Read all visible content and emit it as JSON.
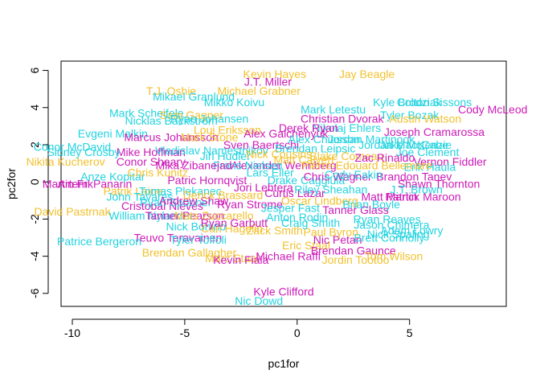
{
  "chart_data": {
    "type": "scatter",
    "title": "",
    "xlabel": "pc1for",
    "ylabel": "pc2for",
    "xlim": [
      -10.5,
      9.3
    ],
    "ylim": [
      -6.7,
      6.5
    ],
    "x_ticks": [
      -10,
      -5,
      0,
      5
    ],
    "x_tick_labels": [
      "-10",
      "-5",
      "0",
      "5"
    ],
    "y_ticks": [
      -6,
      -4,
      -2,
      0,
      2,
      4,
      6
    ],
    "y_tick_labels": [
      "-6",
      "-4",
      "-2",
      "0",
      "2",
      "4",
      "6"
    ],
    "grid": false,
    "legend": "none",
    "palette": {
      "cyan": "#22D3E0",
      "magenta": "#CD1BB8",
      "gold": "#F2C12E"
    },
    "points": [
      {
        "label": "Kevin Hayes",
        "x": -1.0,
        "y": 5.8,
        "color": "gold"
      },
      {
        "label": "Jay Beagle",
        "x": 3.1,
        "y": 5.8,
        "color": "gold"
      },
      {
        "label": "J.T. Miller",
        "x": -1.3,
        "y": 5.4,
        "color": "magenta"
      },
      {
        "label": "T.J. Oshie",
        "x": -5.6,
        "y": 4.9,
        "color": "gold"
      },
      {
        "label": "Michael Grabner",
        "x": -1.7,
        "y": 4.9,
        "color": "gold"
      },
      {
        "label": "Mikael Granlund",
        "x": -4.6,
        "y": 4.6,
        "color": "cyan"
      },
      {
        "label": "Mikko Koivu",
        "x": -2.8,
        "y": 4.3,
        "color": "cyan"
      },
      {
        "label": "Mark Letestu",
        "x": 1.6,
        "y": 3.9,
        "color": "cyan"
      },
      {
        "label": "Kyle Brodziak",
        "x": 4.9,
        "y": 4.3,
        "color": "cyan"
      },
      {
        "label": "Colton Sissons",
        "x": 6.1,
        "y": 4.3,
        "color": "cyan"
      },
      {
        "label": "Cody McLeod",
        "x": 8.7,
        "y": 3.9,
        "color": "magenta"
      },
      {
        "label": "Mark Scheifele",
        "x": -6.7,
        "y": 3.7,
        "color": "cyan"
      },
      {
        "label": "Sam Gagner",
        "x": -4.7,
        "y": 3.6,
        "color": "gold"
      },
      {
        "label": "Nicklas Backstrom",
        "x": -5.6,
        "y": 3.3,
        "color": "cyan"
      },
      {
        "label": "Ryan Johansen",
        "x": -3.9,
        "y": 3.4,
        "color": "cyan"
      },
      {
        "label": "Christian Dvorak",
        "x": 2.0,
        "y": 3.4,
        "color": "magenta"
      },
      {
        "label": "Tyler Bozak",
        "x": 5.0,
        "y": 3.6,
        "color": "cyan"
      },
      {
        "label": "Austin Watson",
        "x": 5.7,
        "y": 3.4,
        "color": "gold"
      },
      {
        "label": "Evgeni Malkin",
        "x": -8.2,
        "y": 2.6,
        "color": "cyan"
      },
      {
        "label": "Loui Eriksson",
        "x": -3.1,
        "y": 2.8,
        "color": "gold"
      },
      {
        "label": "Nikolaj Ehlers",
        "x": 2.2,
        "y": 2.9,
        "color": "cyan"
      },
      {
        "label": "Joseph Cramarossa",
        "x": 6.1,
        "y": 2.7,
        "color": "magenta"
      },
      {
        "label": "Marcus Johansson",
        "x": -5.6,
        "y": 2.4,
        "color": "magenta"
      },
      {
        "label": "Mike Hoffman",
        "x": -6.5,
        "y": 1.6,
        "color": "magenta"
      },
      {
        "label": "Conor McDavid",
        "x": -10.0,
        "y": 1.9,
        "color": "cyan"
      },
      {
        "label": "Sidney Crosby",
        "x": -9.5,
        "y": 1.6,
        "color": "cyan"
      },
      {
        "label": "Nikita Kucherov",
        "x": -10.3,
        "y": 1.1,
        "color": "gold"
      },
      {
        "label": "Conor Sheary",
        "x": -6.5,
        "y": 1.1,
        "color": "magenta"
      },
      {
        "label": "Mark Stone",
        "x": -3.9,
        "y": 2.4,
        "color": "gold"
      },
      {
        "label": "Alex Galchenyuk",
        "x": -0.5,
        "y": 2.6,
        "color": "magenta"
      },
      {
        "label": "Derek Ryan",
        "x": 0.5,
        "y": 2.9,
        "color": "magenta"
      },
      {
        "label": "Jordan Martinook",
        "x": 3.3,
        "y": 2.3,
        "color": "cyan"
      },
      {
        "label": "Jake McCabe",
        "x": 5.2,
        "y": 2.0,
        "color": "cyan"
      },
      {
        "label": "Joe Clement",
        "x": 5.8,
        "y": 1.6,
        "color": "cyan"
      },
      {
        "label": "Jordan MacKenzie",
        "x": 4.8,
        "y": 2.0,
        "color": "cyan"
      },
      {
        "label": "Vernon Fiddler",
        "x": 6.8,
        "y": 1.1,
        "color": "magenta"
      },
      {
        "label": "Erik Haula",
        "x": 5.9,
        "y": 0.8,
        "color": "cyan"
      },
      {
        "label": "Brandon Tanev",
        "x": 5.2,
        "y": 0.3,
        "color": "magenta"
      },
      {
        "label": "Shawn Thornton",
        "x": 6.3,
        "y": -0.1,
        "color": "magenta"
      },
      {
        "label": "Martin Frk",
        "x": -10.2,
        "y": -0.1,
        "color": "magenta"
      },
      {
        "label": "Artemi Panarin",
        "x": -9.0,
        "y": -0.1,
        "color": "magenta"
      },
      {
        "label": "Anze Kopitar",
        "x": -8.2,
        "y": 0.3,
        "color": "cyan"
      },
      {
        "label": "Patrik Laine",
        "x": -7.3,
        "y": -0.5,
        "color": "gold"
      },
      {
        "label": "John Tavares",
        "x": -7.0,
        "y": -0.8,
        "color": "cyan"
      },
      {
        "label": "Alexander Wennberg",
        "x": -0.6,
        "y": 0.9,
        "color": "magenta"
      },
      {
        "label": "Curtis Lazar",
        "x": -0.1,
        "y": -0.6,
        "color": "magenta"
      },
      {
        "label": "Drake Caggiula",
        "x": 0.4,
        "y": 0.1,
        "color": "cyan"
      },
      {
        "label": "Cristobal Nieves",
        "x": -6.0,
        "y": -1.3,
        "color": "magenta"
      },
      {
        "label": "Ryan Spooner",
        "x": -5.4,
        "y": -1.1,
        "color": "cyan"
      },
      {
        "label": "Andrew Shaw",
        "x": -4.6,
        "y": -1.0,
        "color": "magenta"
      },
      {
        "label": "David Pastrnak",
        "x": -10.0,
        "y": -1.6,
        "color": "gold"
      },
      {
        "label": "William Nylander",
        "x": -6.5,
        "y": -1.8,
        "color": "cyan"
      },
      {
        "label": "Tanner Pearson",
        "x": -5.0,
        "y": -1.8,
        "color": "magenta"
      },
      {
        "label": "Mats Zuccarello",
        "x": -3.7,
        "y": -1.8,
        "color": "gold"
      },
      {
        "label": "Anton Rodin",
        "x": 0.0,
        "y": -1.9,
        "color": "cyan"
      },
      {
        "label": "Matt Martin",
        "x": 4.1,
        "y": -0.8,
        "color": "magenta"
      },
      {
        "label": "Patrick Maroon",
        "x": 5.6,
        "y": -0.8,
        "color": "magenta"
      },
      {
        "label": "J.T. Brown",
        "x": 5.3,
        "y": -0.4,
        "color": "cyan"
      },
      {
        "label": "Ryan Reaves",
        "x": 4.0,
        "y": -2.0,
        "color": "cyan"
      },
      {
        "label": "Jason Chimera",
        "x": 4.2,
        "y": -2.3,
        "color": "cyan"
      },
      {
        "label": "Adam Lowry",
        "x": 5.1,
        "y": -2.6,
        "color": "cyan"
      },
      {
        "label": "Nick Bonino",
        "x": -4.5,
        "y": -2.4,
        "color": "cyan"
      },
      {
        "label": "Carl Hagelin",
        "x": -2.9,
        "y": -2.5,
        "color": "gold"
      },
      {
        "label": "Teuvo Teravainen",
        "x": -5.3,
        "y": -3.0,
        "color": "magenta"
      },
      {
        "label": "Tyler Toffoli",
        "x": -4.4,
        "y": -3.1,
        "color": "cyan"
      },
      {
        "label": "Patrice Bergeron",
        "x": -8.8,
        "y": -3.2,
        "color": "cyan"
      },
      {
        "label": "Brendan Gallagher",
        "x": -4.8,
        "y": -3.8,
        "color": "gold"
      },
      {
        "label": "Marc Staal",
        "x": -2.9,
        "y": -4.1,
        "color": "gold"
      },
      {
        "label": "Kevin Fiala",
        "x": -2.5,
        "y": -4.2,
        "color": "magenta"
      },
      {
        "label": "Michael Raffl",
        "x": -0.4,
        "y": -4.0,
        "color": "magenta"
      },
      {
        "label": "Eric Staal",
        "x": 0.4,
        "y": -3.4,
        "color": "gold"
      },
      {
        "label": "Nic Petan",
        "x": 1.8,
        "y": -3.1,
        "color": "magenta"
      },
      {
        "label": "Brendan Gaunce",
        "x": 2.5,
        "y": -3.7,
        "color": "magenta"
      },
      {
        "label": "Jordin Tootoo",
        "x": 2.6,
        "y": -4.2,
        "color": "gold"
      },
      {
        "label": "Tom Wilson",
        "x": 4.3,
        "y": -4.0,
        "color": "gold"
      },
      {
        "label": "Brett Connolly",
        "x": 4.1,
        "y": -3.0,
        "color": "cyan"
      },
      {
        "label": "Nick Spaling",
        "x": 4.5,
        "y": -2.8,
        "color": "cyan"
      },
      {
        "label": "Kyle Clifford",
        "x": -0.6,
        "y": -5.9,
        "color": "magenta"
      },
      {
        "label": "Nic Dowd",
        "x": -1.7,
        "y": -6.4,
        "color": "cyan"
      },
      {
        "label": "Sven Baertschi",
        "x": -1.6,
        "y": 2.0,
        "color": "magenta"
      },
      {
        "label": "Brendan Leipsic",
        "x": 0.8,
        "y": 1.8,
        "color": "cyan"
      },
      {
        "label": "Jiri Hudler",
        "x": -3.2,
        "y": 1.4,
        "color": "cyan"
      },
      {
        "label": "Blake Comeau",
        "x": 2.2,
        "y": 1.4,
        "color": "gold"
      },
      {
        "label": "Tomas Plekanec",
        "x": -5.2,
        "y": -0.5,
        "color": "cyan"
      },
      {
        "label": "Ryan Strome",
        "x": -2.1,
        "y": -1.2,
        "color": "magenta"
      },
      {
        "label": "Riley Sheahan",
        "x": 1.5,
        "y": -0.4,
        "color": "cyan"
      },
      {
        "label": "Pierre-Edouard Bellemare",
        "x": 3.1,
        "y": 0.9,
        "color": "gold"
      },
      {
        "label": "Tanner Glass",
        "x": 2.6,
        "y": -1.5,
        "color": "magenta"
      },
      {
        "label": "Zack Smith",
        "x": -1.0,
        "y": -2.6,
        "color": "gold"
      },
      {
        "label": "Chris Kunitz",
        "x": -6.2,
        "y": 0.5,
        "color": "gold"
      },
      {
        "label": "Patric Hornqvist",
        "x": -4.0,
        "y": 0.1,
        "color": "magenta"
      },
      {
        "label": "Lars Eller",
        "x": -1.2,
        "y": 0.5,
        "color": "cyan"
      },
      {
        "label": "Oscar Lindberg",
        "x": 1.0,
        "y": -1.0,
        "color": "gold"
      },
      {
        "label": "Jesper Fast",
        "x": -0.3,
        "y": -1.4,
        "color": "cyan"
      },
      {
        "label": "Derick Brassard",
        "x": -3.3,
        "y": -0.7,
        "color": "gold"
      },
      {
        "label": "Frans Nielsen",
        "x": -2.2,
        "y": 0.9,
        "color": "cyan"
      },
      {
        "label": "Chris Wagner",
        "x": 1.8,
        "y": 0.3,
        "color": "magenta"
      },
      {
        "label": "Matt Calvert",
        "x": 0.3,
        "y": 1.2,
        "color": "gold"
      },
      {
        "label": "Vladislav Namestnikov",
        "x": -3.8,
        "y": 1.7,
        "color": "cyan"
      },
      {
        "label": "Paul Byron",
        "x": 1.5,
        "y": -2.7,
        "color": "gold"
      },
      {
        "label": "Cody Eakin",
        "x": 2.5,
        "y": 0.4,
        "color": "cyan"
      },
      {
        "label": "Jori Lehtera",
        "x": -1.5,
        "y": -0.3,
        "color": "magenta"
      },
      {
        "label": "Craig Smith",
        "x": 0.6,
        "y": -2.2,
        "color": "cyan"
      },
      {
        "label": "Nick Cousins",
        "x": -0.8,
        "y": 1.5,
        "color": "gold"
      },
      {
        "label": "Brian Boyle",
        "x": 3.3,
        "y": -1.2,
        "color": "cyan"
      },
      {
        "label": "Mika Zibanejad",
        "x": -4.6,
        "y": 0.9,
        "color": "magenta"
      },
      {
        "label": "Alex Chiasson",
        "x": 1.2,
        "y": 2.3,
        "color": "cyan"
      },
      {
        "label": "Ryan Garbutt",
        "x": -2.8,
        "y": -2.2,
        "color": "magenta"
      },
      {
        "label": "Zac Rinaldo",
        "x": 3.9,
        "y": 1.3,
        "color": "magenta"
      }
    ]
  }
}
